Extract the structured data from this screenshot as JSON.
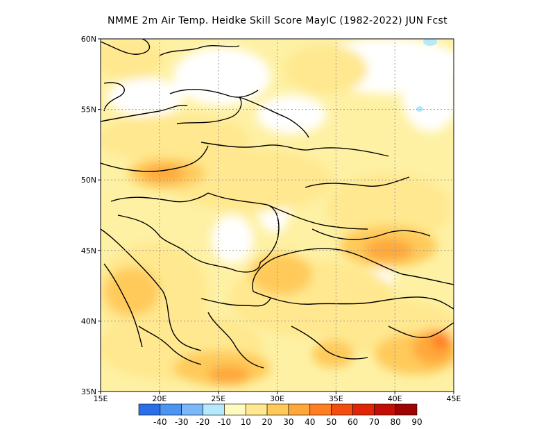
{
  "title": "NMME  2m Air Temp. Heidke Skill Score MayIC (1982-2022) JUN Fcst",
  "map": {
    "lon_range": [
      15,
      45
    ],
    "lat_range": [
      35,
      60
    ],
    "x_ticks": [
      "15E",
      "20E",
      "25E",
      "30E",
      "35E",
      "40E",
      "45E"
    ],
    "y_ticks": [
      "60N",
      "55N",
      "50N",
      "45N",
      "40N",
      "35N"
    ],
    "grid": "dotted"
  },
  "colorbar": {
    "colors": [
      "#2a6ee8",
      "#4b95f2",
      "#7bb8f8",
      "#b5e9fb",
      "#fefbc0",
      "#ffe88f",
      "#ffca5a",
      "#ffa83a",
      "#ff7e22",
      "#f34e0f",
      "#df2506",
      "#c20e05",
      "#9e0404"
    ],
    "labels": [
      "-40",
      "-30",
      "-20",
      "-10",
      "10",
      "20",
      "30",
      "40",
      "50",
      "60",
      "70",
      "80",
      "90"
    ]
  }
}
